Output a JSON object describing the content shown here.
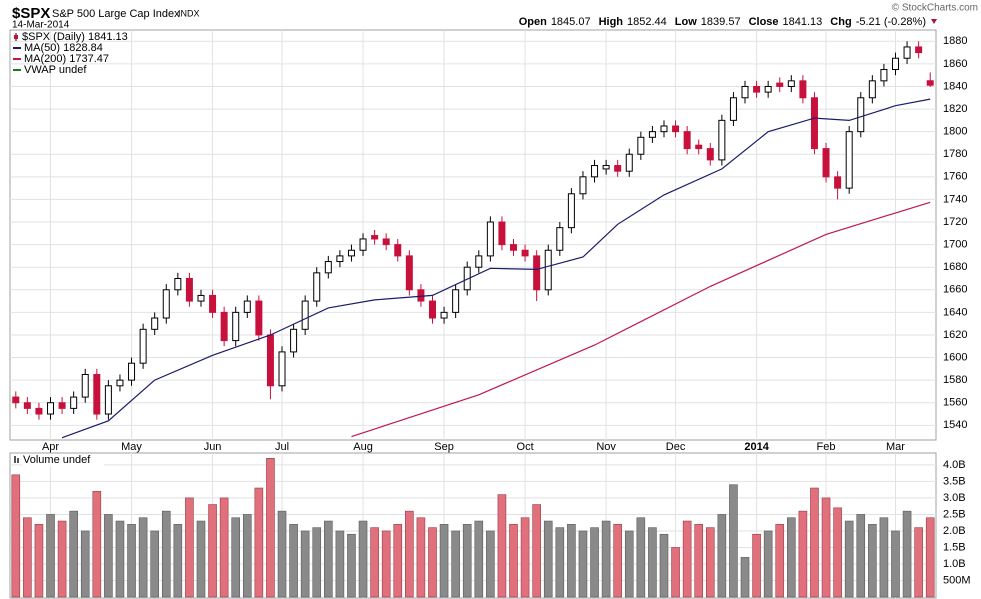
{
  "header": {
    "symbol": "$SPX",
    "name": "S&P 500 Large Cap Index",
    "exchange": "INDX",
    "date": "14-Mar-2014",
    "copyright": "© StockCharts.com",
    "quote": [
      {
        "label": "Open",
        "value": 1845.07
      },
      {
        "label": "High",
        "value": 1852.44
      },
      {
        "label": "Low",
        "value": 1839.57
      },
      {
        "label": "Close",
        "value": 1841.13
      },
      {
        "label": "Chg",
        "value": "-5.21 (-0.28%)"
      }
    ]
  },
  "chart_data": [
    {
      "type": "candlestick",
      "name": "$SPX (Daily) 1841.13",
      "up_color": "#000000",
      "down_color": "#c8103c",
      "grid": true,
      "ylim": [
        1527,
        1890
      ],
      "yticks": [
        1540,
        1560,
        1580,
        1600,
        1620,
        1640,
        1660,
        1680,
        1700,
        1720,
        1740,
        1760,
        1780,
        1800,
        1820,
        1840,
        1860,
        1880
      ],
      "xticks": [
        {
          "value": 3,
          "label": "Apr"
        },
        {
          "value": 10,
          "label": "May"
        },
        {
          "value": 17,
          "label": "Jun"
        },
        {
          "value": 23,
          "label": "Jul"
        },
        {
          "value": 30,
          "label": "Aug"
        },
        {
          "value": 37,
          "label": "Sep"
        },
        {
          "value": 44,
          "label": "Oct"
        },
        {
          "value": 51,
          "label": "Nov"
        },
        {
          "value": 57,
          "label": "Dec"
        },
        {
          "value": 64,
          "label": "2014"
        },
        {
          "value": 70,
          "label": "Feb"
        },
        {
          "value": 76,
          "label": "Mar"
        }
      ],
      "open": [
        1565,
        1560,
        1555,
        1550,
        1560,
        1555,
        1565,
        1585,
        1550,
        1575,
        1580,
        1595,
        1625,
        1635,
        1660,
        1670,
        1650,
        1655,
        1640,
        1615,
        1640,
        1650,
        1620,
        1575,
        1605,
        1625,
        1650,
        1675,
        1685,
        1690,
        1695,
        1708,
        1705,
        1700,
        1690,
        1660,
        1650,
        1635,
        1640,
        1660,
        1680,
        1690,
        1720,
        1700,
        1695,
        1690,
        1660,
        1695,
        1715,
        1745,
        1760,
        1767,
        1770,
        1765,
        1780,
        1795,
        1800,
        1805,
        1800,
        1788,
        1785,
        1775,
        1810,
        1830,
        1840,
        1835,
        1843,
        1840,
        1845,
        1830,
        1785,
        1760,
        1750,
        1800,
        1830,
        1845,
        1855,
        1865,
        1875,
        1845.07
      ],
      "high": [
        1570,
        1565,
        1560,
        1565,
        1565,
        1570,
        1590,
        1590,
        1580,
        1585,
        1600,
        1630,
        1640,
        1665,
        1675,
        1675,
        1660,
        1660,
        1645,
        1645,
        1655,
        1655,
        1625,
        1610,
        1630,
        1655,
        1680,
        1690,
        1695,
        1700,
        1710,
        1713,
        1710,
        1705,
        1695,
        1665,
        1655,
        1645,
        1665,
        1685,
        1695,
        1725,
        1725,
        1705,
        1700,
        1695,
        1700,
        1720,
        1750,
        1765,
        1775,
        1775,
        1775,
        1785,
        1800,
        1805,
        1810,
        1810,
        1805,
        1793,
        1790,
        1815,
        1835,
        1845,
        1845,
        1845,
        1848,
        1850,
        1850,
        1835,
        1790,
        1765,
        1805,
        1835,
        1850,
        1860,
        1870,
        1880,
        1880,
        1852.44
      ],
      "low": [
        1555,
        1550,
        1545,
        1545,
        1550,
        1550,
        1560,
        1545,
        1545,
        1570,
        1575,
        1590,
        1620,
        1630,
        1655,
        1645,
        1645,
        1635,
        1610,
        1610,
        1635,
        1615,
        1563,
        1570,
        1600,
        1620,
        1645,
        1670,
        1680,
        1685,
        1690,
        1700,
        1695,
        1685,
        1655,
        1645,
        1630,
        1630,
        1635,
        1655,
        1675,
        1685,
        1695,
        1690,
        1685,
        1650,
        1655,
        1690,
        1710,
        1740,
        1755,
        1762,
        1760,
        1760,
        1775,
        1790,
        1795,
        1795,
        1780,
        1780,
        1770,
        1770,
        1805,
        1825,
        1830,
        1830,
        1835,
        1835,
        1825,
        1780,
        1755,
        1740,
        1745,
        1795,
        1825,
        1840,
        1850,
        1860,
        1865,
        1839.57
      ],
      "close": [
        1560,
        1555,
        1550,
        1560,
        1555,
        1565,
        1585,
        1550,
        1575,
        1580,
        1595,
        1625,
        1635,
        1660,
        1670,
        1650,
        1655,
        1640,
        1615,
        1640,
        1650,
        1620,
        1575,
        1605,
        1625,
        1650,
        1675,
        1685,
        1690,
        1695,
        1705,
        1705,
        1700,
        1690,
        1660,
        1650,
        1635,
        1640,
        1660,
        1680,
        1690,
        1720,
        1700,
        1695,
        1690,
        1660,
        1695,
        1715,
        1745,
        1760,
        1770,
        1770,
        1765,
        1780,
        1795,
        1800,
        1805,
        1800,
        1785,
        1785,
        1775,
        1810,
        1830,
        1840,
        1835,
        1840,
        1840,
        1845,
        1830,
        1785,
        1760,
        1750,
        1800,
        1830,
        1845,
        1855,
        1865,
        1875,
        1870,
        1841.13
      ],
      "lines": [
        {
          "name": "MA(50) 1828.84",
          "color": "#1c1c6b",
          "x": [
            4,
            8,
            12,
            17,
            22,
            27,
            31,
            36,
            41,
            45,
            49,
            52,
            56,
            61,
            65,
            69,
            72,
            76,
            79
          ],
          "values": [
            1529,
            1544,
            1580,
            1602,
            1620,
            1644,
            1651,
            1655,
            1679,
            1678,
            1689,
            1718,
            1744,
            1767,
            1800,
            1812,
            1810,
            1823,
            1828.84
          ]
        },
        {
          "name": "MA(200) 1737.47",
          "color": "#c0184a",
          "x": [
            29,
            40,
            50,
            60,
            70,
            79
          ],
          "values": [
            1530,
            1567,
            1611,
            1663,
            1709,
            1737.47
          ]
        }
      ],
      "legend": [
        {
          "name": "VWAP undef",
          "color": "#1f7a1f"
        }
      ]
    },
    {
      "type": "bar",
      "title": "Volume undef",
      "up_color": "#8a8a8a",
      "down_color": "#e0707c",
      "grid": true,
      "ylim": [
        0,
        4.3
      ],
      "yticks": [
        {
          "value": 0.5,
          "label": "500M"
        },
        {
          "value": 1,
          "label": "1.0B"
        },
        {
          "value": 1.5,
          "label": "1.5B"
        },
        {
          "value": 2,
          "label": "2.0B"
        },
        {
          "value": 2.5,
          "label": "2.5B"
        },
        {
          "value": 3,
          "label": "3.0B"
        },
        {
          "value": 3.5,
          "label": "3.5B"
        },
        {
          "value": 4,
          "label": "4.0B"
        }
      ],
      "values": [
        3.7,
        2.4,
        2.2,
        2.5,
        2.3,
        2.6,
        2.0,
        3.2,
        2.5,
        2.3,
        2.2,
        2.4,
        2.0,
        2.6,
        2.2,
        3.0,
        2.3,
        2.8,
        3.0,
        2.4,
        2.5,
        3.3,
        4.2,
        2.6,
        2.2,
        2.0,
        2.1,
        2.3,
        2.0,
        1.9,
        2.3,
        2.1,
        2.0,
        2.2,
        2.6,
        2.4,
        2.1,
        2.2,
        2.0,
        2.2,
        2.3,
        2.0,
        3.1,
        2.2,
        2.4,
        2.8,
        2.3,
        2.1,
        2.2,
        2.0,
        2.1,
        2.3,
        2.2,
        2.0,
        2.4,
        2.1,
        1.9,
        1.5,
        2.3,
        2.2,
        2.1,
        2.5,
        3.4,
        1.2,
        1.9,
        2.0,
        2.2,
        2.4,
        2.6,
        3.3,
        3.0,
        2.7,
        2.3,
        2.5,
        2.2,
        2.4,
        2.0,
        2.6,
        2.1,
        2.4
      ]
    }
  ]
}
